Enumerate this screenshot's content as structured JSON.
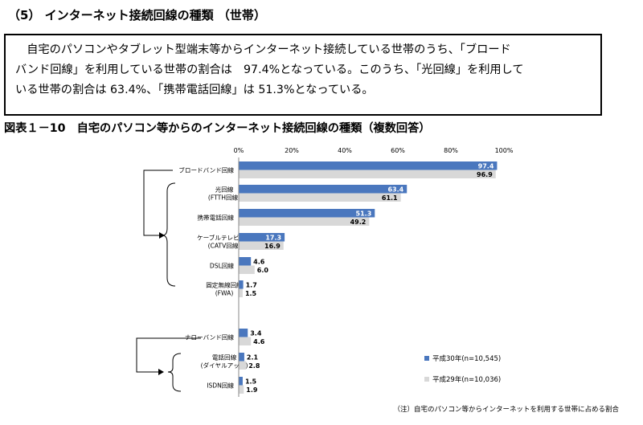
{
  "section_title": "（5） インターネット接続回線の種類 （世帯）",
  "summary": [
    "　自宅のパソコンやタブレット型端末等からインターネット接続している世帯のうち、「ブロード",
    "バンド回線」を利用している世帯の割合は　97.4%となっている。このうち、「光回線」を利用して",
    "いる世帯の割合は 63.4%、「携帯電話回線」は 51.3%となっている。"
  ],
  "figure_title": "図表１－10　自宅のパソコン等からのインターネット接続回線の種類（複数回答）",
  "note": "（注）自宅のパソコン等からインターネットを利用する世帯に占める割合",
  "colors": {
    "series1": "#4a77be",
    "series2": "#d8d8d8",
    "axis": "#888888",
    "bracket": "#000000"
  },
  "chart_data": {
    "type": "bar",
    "orientation": "horizontal",
    "categories": [
      [
        "ブロードバンド回線"
      ],
      [
        "光回線",
        "(FTTH回線)"
      ],
      [
        "携帯電話回線"
      ],
      [
        "ケーブルテレビ回線",
        "(CATV回線)"
      ],
      [
        "DSL回線"
      ],
      [
        "固定無線回線",
        "(FWA)"
      ],
      [
        "ナローバンド回線"
      ],
      [
        "電話回線",
        "(ダイヤルアップ)"
      ],
      [
        "ISDN回線"
      ]
    ],
    "series": [
      {
        "name": "平成30年(n=10,545)",
        "values": [
          97.4,
          63.4,
          51.3,
          17.3,
          4.6,
          1.7,
          3.4,
          2.1,
          1.5
        ]
      },
      {
        "name": "平成29年(n=10,036)",
        "values": [
          96.9,
          61.1,
          49.2,
          16.9,
          6.0,
          1.5,
          4.6,
          2.8,
          1.9
        ]
      }
    ],
    "x_ticks": [
      "0%",
      "20%",
      "40%",
      "60%",
      "80%",
      "100%"
    ],
    "xlim": [
      0,
      100
    ],
    "legend_position": "bottom-right",
    "grid": false
  }
}
